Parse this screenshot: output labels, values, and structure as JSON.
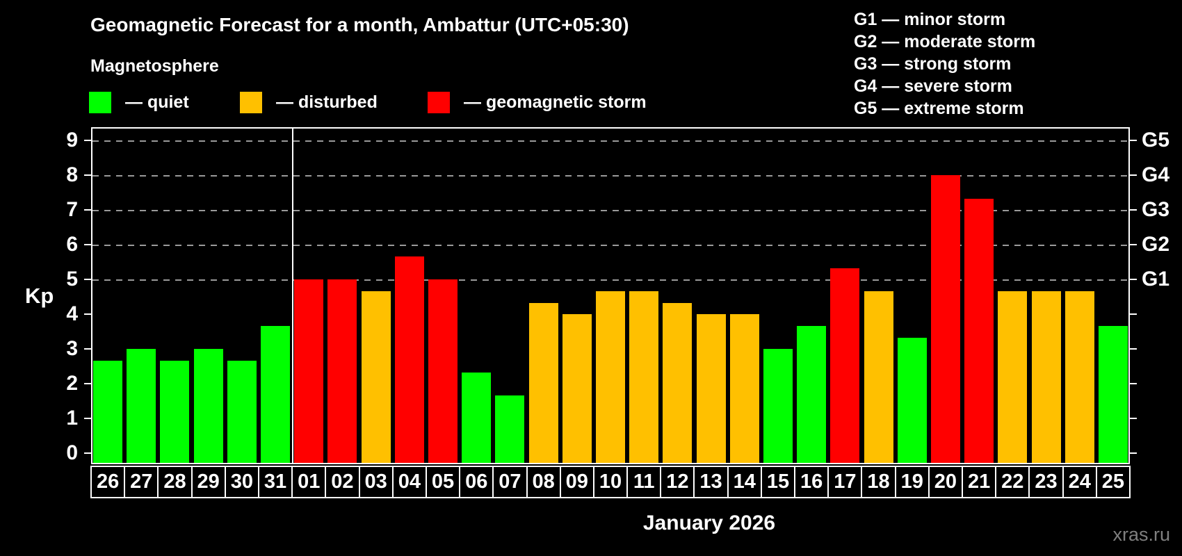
{
  "title": "Geomagnetic Forecast for a month, Ambattur (UTC+05:30)",
  "subtitle": "Magnetosphere",
  "legend": {
    "items": [
      {
        "key": "quiet",
        "label": "— quiet",
        "color": "#00ff00"
      },
      {
        "key": "disturbed",
        "label": "— disturbed",
        "color": "#ffc000"
      },
      {
        "key": "storm",
        "label": "— geomagnetic storm",
        "color": "#ff0000"
      }
    ]
  },
  "g_legend": [
    "G1 — minor storm",
    "G2 — moderate storm",
    "G3 — strong storm",
    "G4 — severe storm",
    "G5 — extreme storm"
  ],
  "watermark": "xras.ru",
  "chart_data": {
    "type": "bar",
    "title": "Geomagnetic Forecast for a month, Ambattur (UTC+05:30)",
    "xlabel": "January 2026",
    "ylabel": "Kp",
    "ylim": [
      0,
      9.5
    ],
    "y_ticks": [
      0,
      1,
      2,
      3,
      4,
      5,
      6,
      7,
      8,
      9
    ],
    "gridlines_at": [
      5,
      6,
      7,
      8,
      9
    ],
    "grid_style": "dashed horizontal, storm levels only",
    "right_axis_labels": {
      "5": "G1",
      "6": "G2",
      "7": "G3",
      "8": "G4",
      "9": "G5"
    },
    "month_separator_after_index": 5,
    "categories": [
      "26",
      "27",
      "28",
      "29",
      "30",
      "31",
      "01",
      "02",
      "03",
      "04",
      "05",
      "06",
      "07",
      "08",
      "09",
      "10",
      "11",
      "12",
      "13",
      "14",
      "15",
      "16",
      "17",
      "18",
      "19",
      "20",
      "21",
      "22",
      "23",
      "24",
      "25"
    ],
    "values": [
      2.67,
      3.0,
      2.67,
      3.0,
      2.67,
      3.67,
      5.0,
      5.0,
      4.67,
      5.67,
      5.0,
      2.33,
      1.67,
      4.33,
      4.0,
      4.67,
      4.67,
      4.33,
      4.0,
      4.0,
      3.0,
      3.67,
      5.33,
      4.67,
      3.33,
      8.0,
      7.33,
      4.67,
      4.67,
      4.67,
      3.67
    ],
    "statuses": [
      "quiet",
      "quiet",
      "quiet",
      "quiet",
      "quiet",
      "quiet",
      "storm",
      "storm",
      "disturbed",
      "storm",
      "storm",
      "quiet",
      "quiet",
      "disturbed",
      "disturbed",
      "disturbed",
      "disturbed",
      "disturbed",
      "disturbed",
      "disturbed",
      "quiet",
      "quiet",
      "storm",
      "disturbed",
      "quiet",
      "storm",
      "storm",
      "disturbed",
      "disturbed",
      "disturbed",
      "quiet"
    ],
    "colors": {
      "quiet": "#00ff00",
      "disturbed": "#ffc000",
      "storm": "#ff0000"
    }
  }
}
